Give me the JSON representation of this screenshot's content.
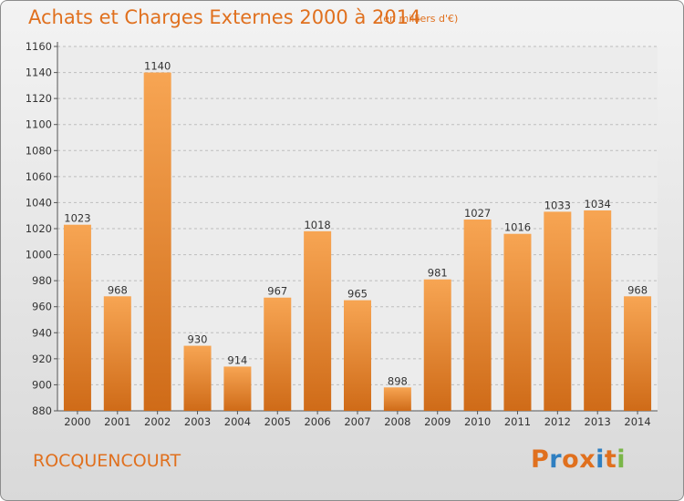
{
  "header": {
    "title": "Achats et Charges Externes 2000 à 2014",
    "subtitle": "(en milliers d'€)"
  },
  "commune": "ROCQUENCOURT",
  "logo": {
    "text": "Proxiti",
    "colors": [
      "#e0701e",
      "#2f7fc1",
      "#e0701e",
      "#e0701e",
      "#2f7fc1",
      "#e0701e",
      "#7ab648"
    ]
  },
  "colors": {
    "bar_light": "#f7a553",
    "bar_dark": "#cf6b18",
    "text_accent": "#e0701e"
  },
  "chart_data": {
    "type": "bar",
    "categories": [
      "2000",
      "2001",
      "2002",
      "2003",
      "2004",
      "2005",
      "2006",
      "2007",
      "2008",
      "2009",
      "2010",
      "2011",
      "2012",
      "2013",
      "2014"
    ],
    "values": [
      1023,
      968,
      1140,
      930,
      914,
      967,
      1018,
      965,
      898,
      981,
      1027,
      1016,
      1033,
      1034,
      968
    ],
    "ylim": [
      880,
      1160
    ],
    "yticks": [
      880,
      900,
      920,
      940,
      960,
      980,
      1000,
      1020,
      1040,
      1060,
      1080,
      1100,
      1120,
      1140,
      1160
    ],
    "grid": true
  }
}
